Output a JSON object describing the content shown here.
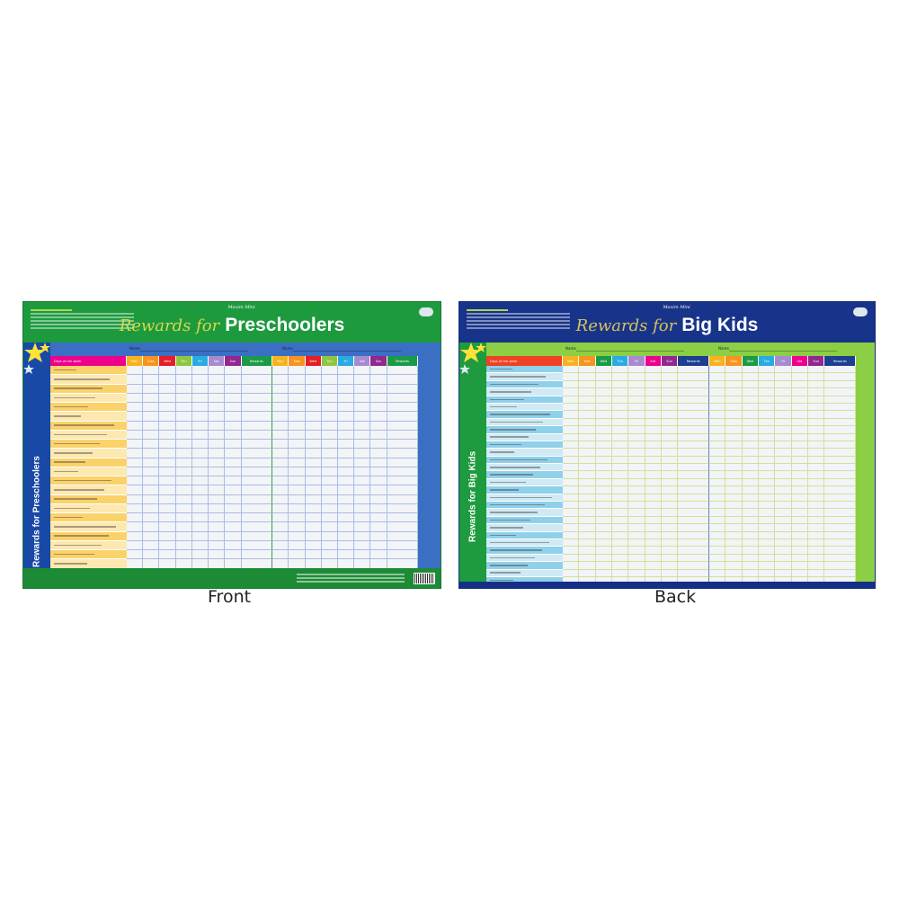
{
  "front": {
    "brand": "Maxim Mini",
    "title_script": "Rewards for",
    "title_bold": "Preschoolers",
    "side_label": "Rewards for Preschoolers",
    "name_label": "Name",
    "days_header": "Days of the week",
    "days": [
      "Mon",
      "Tues",
      "Wed",
      "Thu",
      "Fri",
      "Sat",
      "Sun",
      "Rewards"
    ],
    "row_count": 23,
    "caption": "Front",
    "colors": {
      "header": "#1d9a3e",
      "background": "#3b6fc4",
      "days_header": "#ec008c",
      "task_rows": [
        "#fbd26a",
        "#fde8b0"
      ],
      "grid_lines": "#a9bde0",
      "divider": "#3a9b4a",
      "day_colors": [
        "#f7b21d",
        "#f7941d",
        "#e41e26",
        "#8dc63f",
        "#29abe2",
        "#a78bd0",
        "#92278f",
        "#1a9b48"
      ]
    }
  },
  "back": {
    "brand": "Maxim Mini",
    "title_script": "Rewards for",
    "title_bold": "Big Kids",
    "side_label": "Rewards for Big Kids",
    "name_label": "Name",
    "days_header": "Days of the week",
    "days": [
      "Mon",
      "Tues",
      "Wed",
      "Thu",
      "Fri",
      "Sat",
      "Sun",
      "Rewards"
    ],
    "row_count": 30,
    "caption": "Back",
    "colors": {
      "header": "#18348a",
      "background": "#8ccf45",
      "days_header": "#ef4123",
      "task_rows": [
        "#8fd0ea",
        "#cfeaf5"
      ],
      "grid_lines": "#cfe29a",
      "divider": "#6a7fb5",
      "day_colors": [
        "#f7b21d",
        "#f7941d",
        "#1a9b48",
        "#29abe2",
        "#a78bd0",
        "#ec008c",
        "#92278f",
        "#1d3f8f"
      ]
    }
  }
}
